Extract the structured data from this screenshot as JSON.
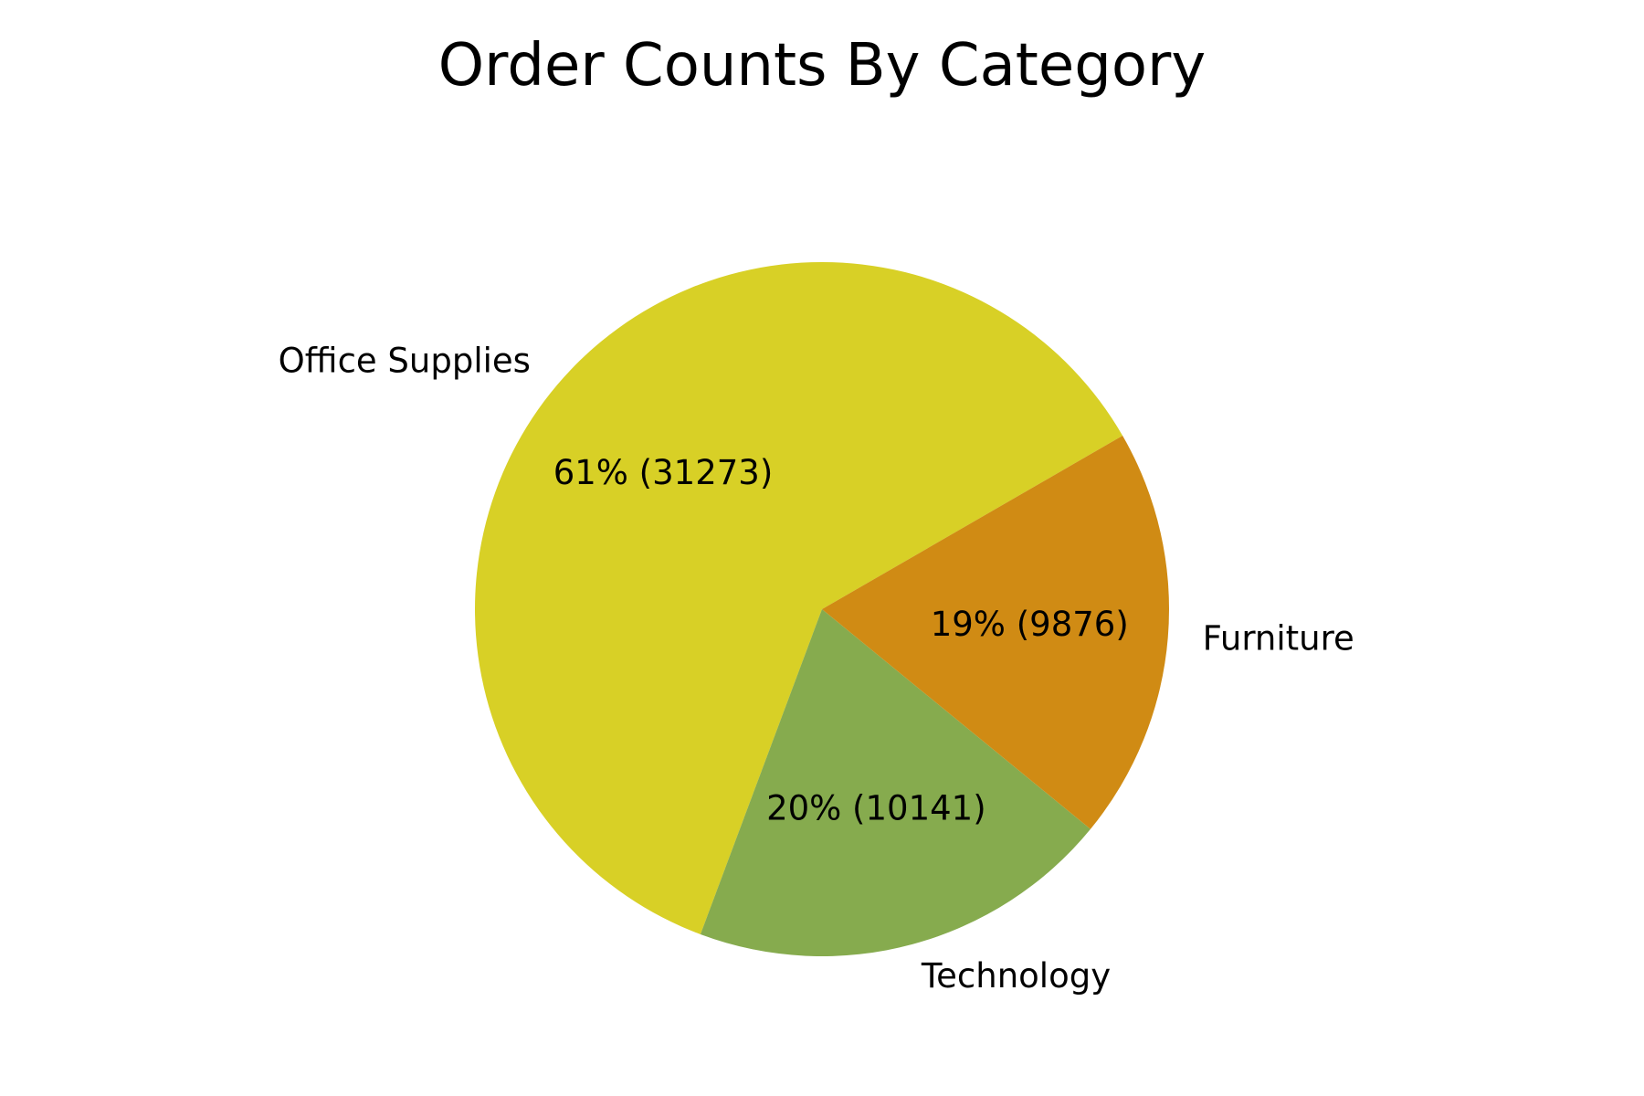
{
  "chart_data": {
    "type": "pie",
    "title": "Order Counts By Category",
    "categories": [
      "Office Supplies",
      "Furniture",
      "Technology"
    ],
    "values": [
      31273,
      9876,
      10141
    ],
    "percent_labels": [
      "61% (31273)",
      "19% (9876)",
      "20% (10141)"
    ],
    "colors": [
      "#d8d026",
      "#d08b14",
      "#86ab4e"
    ],
    "legend": "none"
  }
}
